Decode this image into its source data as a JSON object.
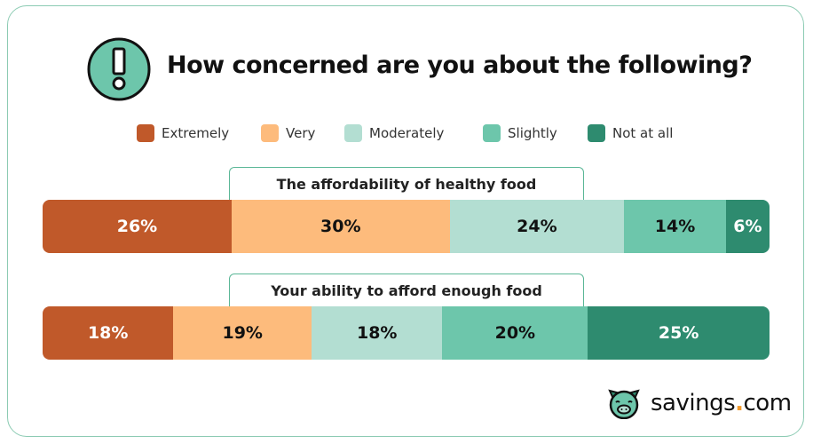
{
  "title": "How concerned are you about the following?",
  "brand": {
    "name": "savings",
    "dot": ".",
    "tld": "com"
  },
  "colors": {
    "Extremely": "#c0592a",
    "Very": "#fdbb7c",
    "Moderately": "#b3ded2",
    "Slightly": "#6dc6ab",
    "Not at all": "#2e8b6f",
    "border": "#8ccbb3"
  },
  "chart_data": {
    "type": "bar",
    "stacked": true,
    "orientation": "horizontal",
    "title": "How concerned are you about the following?",
    "legend": [
      "Extremely",
      "Very",
      "Moderately",
      "Slightly",
      "Not at all"
    ],
    "legend_position": "top",
    "categories": [
      "The affordability of healthy food",
      "Your ability to afford enough food"
    ],
    "series": [
      {
        "name": "Extremely",
        "values": [
          26,
          18
        ]
      },
      {
        "name": "Very",
        "values": [
          30,
          19
        ]
      },
      {
        "name": "Moderately",
        "values": [
          24,
          18
        ]
      },
      {
        "name": "Slightly",
        "values": [
          14,
          20
        ]
      },
      {
        "name": "Not at all",
        "values": [
          6,
          25
        ]
      }
    ],
    "unit": "%"
  }
}
